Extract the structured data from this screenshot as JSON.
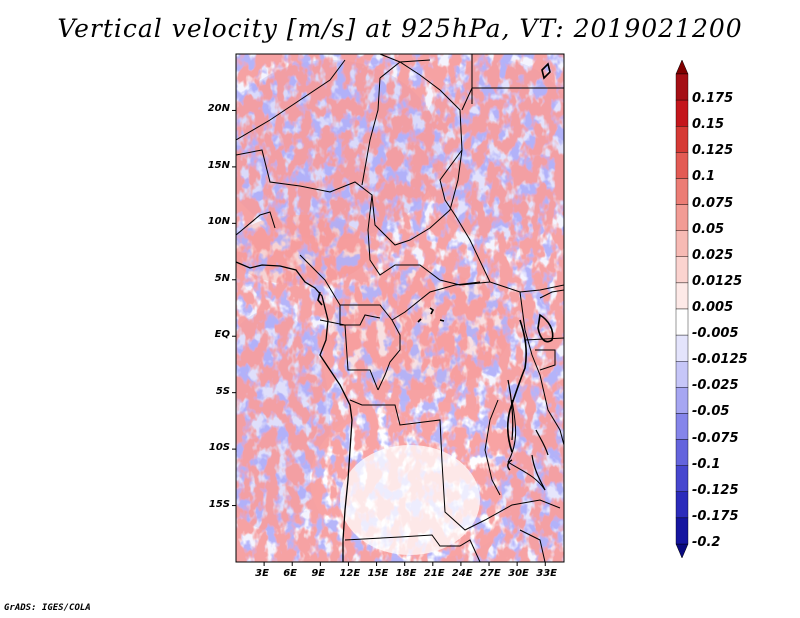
{
  "title": "Vertical velocity [m/s] at 925hPa, VT: 2019021200",
  "credit": "GrADS: IGES/COLA",
  "map": {
    "lon_range": [
      0,
      35
    ],
    "lat_range": [
      -20,
      25
    ],
    "lat_ticks": [
      {
        "lat": 20,
        "label": "20N"
      },
      {
        "lat": 15,
        "label": "15N"
      },
      {
        "lat": 10,
        "label": "10N"
      },
      {
        "lat": 5,
        "label": "5N"
      },
      {
        "lat": 0,
        "label": "EQ"
      },
      {
        "lat": -5,
        "label": "5S"
      },
      {
        "lat": -10,
        "label": "10S"
      },
      {
        "lat": -15,
        "label": "15S"
      }
    ],
    "lon_ticks": [
      {
        "lon": 3,
        "label": "3E"
      },
      {
        "lon": 6,
        "label": "6E"
      },
      {
        "lon": 9,
        "label": "9E"
      },
      {
        "lon": 12,
        "label": "12E"
      },
      {
        "lon": 15,
        "label": "15E"
      },
      {
        "lon": 18,
        "label": "18E"
      },
      {
        "lon": 21,
        "label": "21E"
      },
      {
        "lon": 24,
        "label": "24E"
      },
      {
        "lon": 27,
        "label": "27E"
      },
      {
        "lon": 30,
        "label": "30E"
      },
      {
        "lon": 33,
        "label": "33E"
      }
    ]
  },
  "colorbar": {
    "levels": [
      {
        "label": "0.175",
        "color": "#a50f15"
      },
      {
        "label": "0.15",
        "color": "#c4161c"
      },
      {
        "label": "0.125",
        "color": "#d63a35"
      },
      {
        "label": "0.1",
        "color": "#e35b54"
      },
      {
        "label": "0.075",
        "color": "#ec7d75"
      },
      {
        "label": "0.05",
        "color": "#f29c95"
      },
      {
        "label": "0.025",
        "color": "#f7bab4"
      },
      {
        "label": "0.0125",
        "color": "#fbd3cf"
      },
      {
        "label": "0.005",
        "color": "#fde9e7"
      },
      {
        "label": "-0.005",
        "color": "#ffffff"
      },
      {
        "label": "-0.0125",
        "color": "#e4e4fc"
      },
      {
        "label": "-0.025",
        "color": "#c6c6f8"
      },
      {
        "label": "-0.05",
        "color": "#a6a6f2"
      },
      {
        "label": "-0.075",
        "color": "#8585ea"
      },
      {
        "label": "-0.1",
        "color": "#6464dd"
      },
      {
        "label": "-0.125",
        "color": "#4747cf"
      },
      {
        "label": "-0.175",
        "color": "#2b2bbb"
      },
      {
        "label": "-0.2",
        "color": "#1515a0"
      }
    ],
    "top_arrow_color": "#7f0000",
    "bottom_arrow_color": "#0a0a80"
  }
}
